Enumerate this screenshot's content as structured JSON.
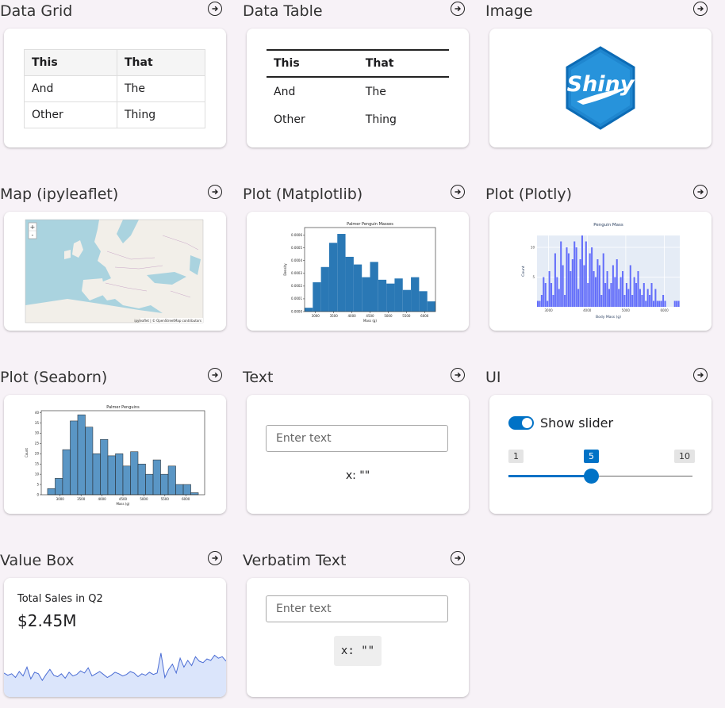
{
  "cards": {
    "data_grid": {
      "title": "Data Grid",
      "headers": [
        "This",
        "That"
      ],
      "rows": [
        [
          "And",
          "The"
        ],
        [
          "Other",
          "Thing"
        ]
      ]
    },
    "data_table": {
      "title": "Data Table",
      "headers": [
        "This",
        "That"
      ],
      "rows": [
        [
          "And",
          "The"
        ],
        [
          "Other",
          "Thing"
        ]
      ]
    },
    "image": {
      "title": "Image",
      "logo_text": "Shiny"
    },
    "map": {
      "title": "Map (ipyleaflet)",
      "zoom_in": "+",
      "zoom_out": "-",
      "attribution": "ipyleaflet | © OpenStreetMap contributors"
    },
    "plot_matplotlib": {
      "title": "Plot (Matplotlib)",
      "accent": "#2a78b5",
      "chart_data": {
        "type": "bar",
        "title": "Palmer Penguin Masses",
        "xlabel": "Mass (g)",
        "ylabel": "Density",
        "x_ticks": [
          "3000",
          "3500",
          "4000",
          "4500",
          "5000",
          "5500",
          "6000"
        ],
        "y_ticks": [
          "0.0000",
          "0.0001",
          "0.0002",
          "0.0003",
          "0.0004",
          "0.0005",
          "0.0006"
        ],
        "xlim": [
          2700,
          6300
        ],
        "ylim": [
          0,
          0.00066
        ],
        "bin_edges": [
          2700,
          2925,
          3150,
          3375,
          3600,
          3825,
          4050,
          4275,
          4500,
          4725,
          4950,
          5175,
          5400,
          5625,
          5850,
          6075,
          6300
        ],
        "values": [
          3e-05,
          0.00023,
          0.00035,
          0.00054,
          0.00061,
          0.00043,
          0.00037,
          0.00027,
          0.00039,
          0.00025,
          0.00022,
          0.00026,
          0.00017,
          0.00027,
          0.00016,
          8e-05,
          1e-05
        ]
      }
    },
    "plot_plotly": {
      "title": "Plot (Plotly)",
      "accent": "#636efa",
      "chart_data": {
        "type": "bar",
        "title": "Penguin Mass",
        "xlabel": "Body Mass (g)",
        "ylabel": "Count",
        "x_ticks": [
          "3000",
          "4000",
          "5000",
          "6000"
        ],
        "y_ticks": [
          "5",
          "10"
        ],
        "xlim": [
          2700,
          6400
        ],
        "ylim": [
          0,
          12
        ],
        "bin_start": 2700,
        "bin_width": 50,
        "values": [
          1,
          1,
          2,
          5,
          4,
          1,
          6,
          4,
          2,
          9,
          5,
          3,
          11,
          7,
          2,
          10,
          9,
          6,
          8,
          11,
          10,
          3,
          8,
          12,
          7,
          11,
          4,
          9,
          10,
          6,
          5,
          8,
          7,
          2,
          9,
          4,
          6,
          3,
          4,
          7,
          5,
          8,
          3,
          5,
          6,
          2,
          4,
          3,
          7,
          2,
          5,
          4,
          6,
          3,
          2,
          4,
          1,
          3,
          2,
          4,
          1,
          3,
          1,
          1,
          1,
          2,
          1,
          0,
          0,
          0,
          0,
          1,
          1,
          1
        ]
      }
    },
    "plot_seaborn": {
      "title": "Plot (Seaborn)",
      "accent": "#5a96c5",
      "chart_data": {
        "type": "bar",
        "title": "Palmer Penguins",
        "xlabel": "Mass (g)",
        "ylabel": "Count",
        "x_ticks": [
          "3000",
          "3500",
          "4000",
          "4500",
          "5000",
          "5500",
          "6000"
        ],
        "y_ticks": [
          "0",
          "5",
          "10",
          "15",
          "20",
          "25",
          "30",
          "35",
          "40"
        ],
        "xlim": [
          2550,
          6450
        ],
        "ylim": [
          0,
          41
        ],
        "bin_edges": [
          2700,
          2880,
          3060,
          3240,
          3420,
          3600,
          3780,
          3960,
          4140,
          4320,
          4500,
          4680,
          4860,
          5040,
          5220,
          5400,
          5580,
          5760,
          5940,
          6120,
          6300
        ],
        "values": [
          3,
          8,
          22,
          36,
          39,
          33,
          20,
          27,
          19,
          20,
          14,
          21,
          15,
          10,
          17,
          10,
          14,
          5,
          5,
          1
        ]
      }
    },
    "text": {
      "title": "Text",
      "placeholder": "Enter text",
      "output": "x: \"\""
    },
    "ui": {
      "title": "UI",
      "toggle_label": "Show slider",
      "slider_min": "1",
      "slider_max": "10",
      "slider_value": "5",
      "slider_fraction": 0.444,
      "accent": "#0072c6"
    },
    "value_box": {
      "title": "Value Box",
      "label": "Total Sales in Q2",
      "value": "$2.45M",
      "sparkline": [
        28,
        25,
        27,
        22,
        30,
        24,
        36,
        20,
        29,
        27,
        18,
        26,
        33,
        25,
        23,
        27,
        21,
        29,
        24,
        26,
        31,
        28,
        35,
        24,
        27,
        30,
        26,
        22,
        25,
        29,
        27,
        24,
        26,
        30,
        28,
        23,
        27,
        25,
        29,
        26,
        28,
        55,
        22,
        33,
        40,
        28,
        48,
        36,
        45,
        38,
        50,
        44,
        42,
        47,
        45,
        52,
        48,
        50,
        44
      ]
    },
    "verbatim": {
      "title": "Verbatim Text",
      "placeholder": "Enter text",
      "output": "x: \"\""
    }
  }
}
